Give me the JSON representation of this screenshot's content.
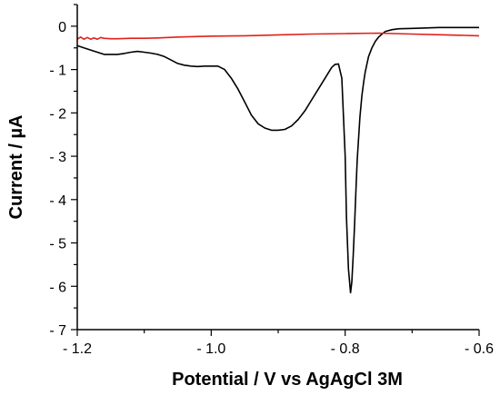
{
  "chart_data": {
    "type": "line",
    "xlabel": "Potential / V vs AgAgCl 3M",
    "ylabel": "Current / µA",
    "xlim": [
      -1.2,
      -0.6
    ],
    "ylim": [
      -7,
      0.5
    ],
    "x_ticks": [
      -1.2,
      -1.0,
      -0.8,
      -0.6
    ],
    "x_tick_labels": [
      "- 1.2",
      "- 1.0",
      "- 0.8",
      "- 0.6"
    ],
    "y_ticks": [
      0,
      -1,
      -2,
      -3,
      -4,
      -5,
      -6,
      -7
    ],
    "y_tick_labels": [
      "0",
      "- 1",
      "- 2",
      "- 3",
      "- 4",
      "- 5",
      "- 6",
      "- 7"
    ],
    "grid": false,
    "series": [
      {
        "color": "#000000",
        "x": [
          -1.2,
          -1.19,
          -1.18,
          -1.17,
          -1.16,
          -1.15,
          -1.14,
          -1.13,
          -1.12,
          -1.11,
          -1.1,
          -1.09,
          -1.08,
          -1.07,
          -1.06,
          -1.05,
          -1.04,
          -1.03,
          -1.02,
          -1.01,
          -1.0,
          -0.99,
          -0.98,
          -0.97,
          -0.96,
          -0.95,
          -0.94,
          -0.93,
          -0.92,
          -0.91,
          -0.9,
          -0.89,
          -0.88,
          -0.87,
          -0.86,
          -0.85,
          -0.84,
          -0.83,
          -0.82,
          -0.815,
          -0.81,
          -0.805,
          -0.8,
          -0.798,
          -0.795,
          -0.792,
          -0.79,
          -0.788,
          -0.786,
          -0.784,
          -0.782,
          -0.78,
          -0.778,
          -0.775,
          -0.772,
          -0.77,
          -0.765,
          -0.76,
          -0.755,
          -0.75,
          -0.745,
          -0.74,
          -0.73,
          -0.72,
          -0.7,
          -0.68,
          -0.66,
          -0.64,
          -0.62,
          -0.6
        ],
        "y": [
          -0.45,
          -0.5,
          -0.55,
          -0.6,
          -0.65,
          -0.65,
          -0.65,
          -0.63,
          -0.6,
          -0.58,
          -0.6,
          -0.62,
          -0.65,
          -0.7,
          -0.78,
          -0.86,
          -0.9,
          -0.92,
          -0.93,
          -0.92,
          -0.92,
          -0.92,
          -1.0,
          -1.2,
          -1.45,
          -1.75,
          -2.05,
          -2.25,
          -2.35,
          -2.4,
          -2.4,
          -2.38,
          -2.3,
          -2.15,
          -1.95,
          -1.7,
          -1.45,
          -1.2,
          -0.95,
          -0.88,
          -0.87,
          -1.2,
          -3.0,
          -4.4,
          -5.6,
          -6.15,
          -5.9,
          -5.3,
          -4.6,
          -3.8,
          -3.1,
          -2.6,
          -2.1,
          -1.6,
          -1.25,
          -1.05,
          -0.7,
          -0.5,
          -0.35,
          -0.25,
          -0.18,
          -0.12,
          -0.08,
          -0.06,
          -0.05,
          -0.04,
          -0.03,
          -0.03,
          -0.03,
          -0.03
        ]
      },
      {
        "color": "#e0201a",
        "x": [
          -1.2,
          -1.195,
          -1.19,
          -1.185,
          -1.18,
          -1.175,
          -1.17,
          -1.165,
          -1.16,
          -1.15,
          -1.14,
          -1.12,
          -1.1,
          -1.08,
          -1.05,
          -1.0,
          -0.95,
          -0.9,
          -0.85,
          -0.8,
          -0.75,
          -0.7,
          -0.65,
          -0.6
        ],
        "y": [
          -0.3,
          -0.25,
          -0.3,
          -0.26,
          -0.3,
          -0.27,
          -0.3,
          -0.26,
          -0.28,
          -0.29,
          -0.29,
          -0.28,
          -0.28,
          -0.27,
          -0.25,
          -0.23,
          -0.22,
          -0.2,
          -0.18,
          -0.17,
          -0.16,
          -0.18,
          -0.2,
          -0.22
        ]
      }
    ]
  }
}
